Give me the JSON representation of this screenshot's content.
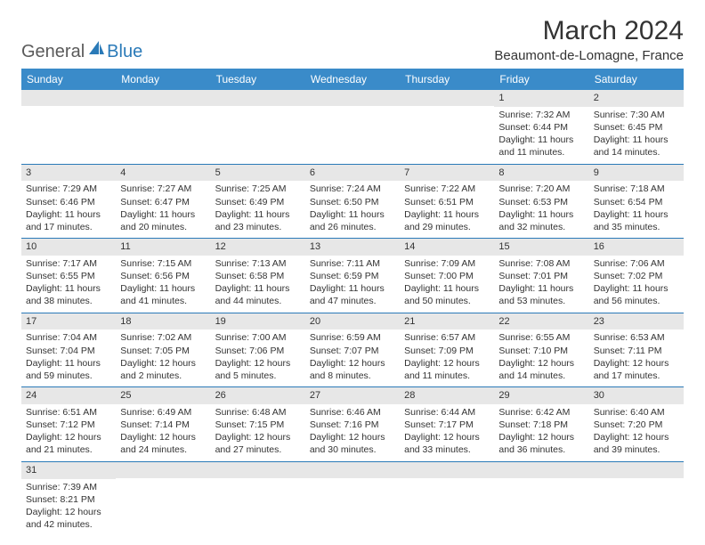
{
  "logo": {
    "part1": "General",
    "part2": "Blue"
  },
  "title": "March 2024",
  "location": "Beaumont-de-Lomagne, France",
  "colors": {
    "header_bg": "#3a8bc9",
    "border": "#2a7ab8",
    "daynum_bg": "#e7e7e7",
    "text": "#333333",
    "logo_gray": "#5a5a5a",
    "logo_blue": "#2a7ab8"
  },
  "day_headers": [
    "Sunday",
    "Monday",
    "Tuesday",
    "Wednesday",
    "Thursday",
    "Friday",
    "Saturday"
  ],
  "weeks": [
    [
      null,
      null,
      null,
      null,
      null,
      {
        "d": "1",
        "sr": "Sunrise: 7:32 AM",
        "ss": "Sunset: 6:44 PM",
        "dl": "Daylight: 11 hours and 11 minutes."
      },
      {
        "d": "2",
        "sr": "Sunrise: 7:30 AM",
        "ss": "Sunset: 6:45 PM",
        "dl": "Daylight: 11 hours and 14 minutes."
      }
    ],
    [
      {
        "d": "3",
        "sr": "Sunrise: 7:29 AM",
        "ss": "Sunset: 6:46 PM",
        "dl": "Daylight: 11 hours and 17 minutes."
      },
      {
        "d": "4",
        "sr": "Sunrise: 7:27 AM",
        "ss": "Sunset: 6:47 PM",
        "dl": "Daylight: 11 hours and 20 minutes."
      },
      {
        "d": "5",
        "sr": "Sunrise: 7:25 AM",
        "ss": "Sunset: 6:49 PM",
        "dl": "Daylight: 11 hours and 23 minutes."
      },
      {
        "d": "6",
        "sr": "Sunrise: 7:24 AM",
        "ss": "Sunset: 6:50 PM",
        "dl": "Daylight: 11 hours and 26 minutes."
      },
      {
        "d": "7",
        "sr": "Sunrise: 7:22 AM",
        "ss": "Sunset: 6:51 PM",
        "dl": "Daylight: 11 hours and 29 minutes."
      },
      {
        "d": "8",
        "sr": "Sunrise: 7:20 AM",
        "ss": "Sunset: 6:53 PM",
        "dl": "Daylight: 11 hours and 32 minutes."
      },
      {
        "d": "9",
        "sr": "Sunrise: 7:18 AM",
        "ss": "Sunset: 6:54 PM",
        "dl": "Daylight: 11 hours and 35 minutes."
      }
    ],
    [
      {
        "d": "10",
        "sr": "Sunrise: 7:17 AM",
        "ss": "Sunset: 6:55 PM",
        "dl": "Daylight: 11 hours and 38 minutes."
      },
      {
        "d": "11",
        "sr": "Sunrise: 7:15 AM",
        "ss": "Sunset: 6:56 PM",
        "dl": "Daylight: 11 hours and 41 minutes."
      },
      {
        "d": "12",
        "sr": "Sunrise: 7:13 AM",
        "ss": "Sunset: 6:58 PM",
        "dl": "Daylight: 11 hours and 44 minutes."
      },
      {
        "d": "13",
        "sr": "Sunrise: 7:11 AM",
        "ss": "Sunset: 6:59 PM",
        "dl": "Daylight: 11 hours and 47 minutes."
      },
      {
        "d": "14",
        "sr": "Sunrise: 7:09 AM",
        "ss": "Sunset: 7:00 PM",
        "dl": "Daylight: 11 hours and 50 minutes."
      },
      {
        "d": "15",
        "sr": "Sunrise: 7:08 AM",
        "ss": "Sunset: 7:01 PM",
        "dl": "Daylight: 11 hours and 53 minutes."
      },
      {
        "d": "16",
        "sr": "Sunrise: 7:06 AM",
        "ss": "Sunset: 7:02 PM",
        "dl": "Daylight: 11 hours and 56 minutes."
      }
    ],
    [
      {
        "d": "17",
        "sr": "Sunrise: 7:04 AM",
        "ss": "Sunset: 7:04 PM",
        "dl": "Daylight: 11 hours and 59 minutes."
      },
      {
        "d": "18",
        "sr": "Sunrise: 7:02 AM",
        "ss": "Sunset: 7:05 PM",
        "dl": "Daylight: 12 hours and 2 minutes."
      },
      {
        "d": "19",
        "sr": "Sunrise: 7:00 AM",
        "ss": "Sunset: 7:06 PM",
        "dl": "Daylight: 12 hours and 5 minutes."
      },
      {
        "d": "20",
        "sr": "Sunrise: 6:59 AM",
        "ss": "Sunset: 7:07 PM",
        "dl": "Daylight: 12 hours and 8 minutes."
      },
      {
        "d": "21",
        "sr": "Sunrise: 6:57 AM",
        "ss": "Sunset: 7:09 PM",
        "dl": "Daylight: 12 hours and 11 minutes."
      },
      {
        "d": "22",
        "sr": "Sunrise: 6:55 AM",
        "ss": "Sunset: 7:10 PM",
        "dl": "Daylight: 12 hours and 14 minutes."
      },
      {
        "d": "23",
        "sr": "Sunrise: 6:53 AM",
        "ss": "Sunset: 7:11 PM",
        "dl": "Daylight: 12 hours and 17 minutes."
      }
    ],
    [
      {
        "d": "24",
        "sr": "Sunrise: 6:51 AM",
        "ss": "Sunset: 7:12 PM",
        "dl": "Daylight: 12 hours and 21 minutes."
      },
      {
        "d": "25",
        "sr": "Sunrise: 6:49 AM",
        "ss": "Sunset: 7:14 PM",
        "dl": "Daylight: 12 hours and 24 minutes."
      },
      {
        "d": "26",
        "sr": "Sunrise: 6:48 AM",
        "ss": "Sunset: 7:15 PM",
        "dl": "Daylight: 12 hours and 27 minutes."
      },
      {
        "d": "27",
        "sr": "Sunrise: 6:46 AM",
        "ss": "Sunset: 7:16 PM",
        "dl": "Daylight: 12 hours and 30 minutes."
      },
      {
        "d": "28",
        "sr": "Sunrise: 6:44 AM",
        "ss": "Sunset: 7:17 PM",
        "dl": "Daylight: 12 hours and 33 minutes."
      },
      {
        "d": "29",
        "sr": "Sunrise: 6:42 AM",
        "ss": "Sunset: 7:18 PM",
        "dl": "Daylight: 12 hours and 36 minutes."
      },
      {
        "d": "30",
        "sr": "Sunrise: 6:40 AM",
        "ss": "Sunset: 7:20 PM",
        "dl": "Daylight: 12 hours and 39 minutes."
      }
    ],
    [
      {
        "d": "31",
        "sr": "Sunrise: 7:39 AM",
        "ss": "Sunset: 8:21 PM",
        "dl": "Daylight: 12 hours and 42 minutes."
      },
      null,
      null,
      null,
      null,
      null,
      null
    ]
  ]
}
